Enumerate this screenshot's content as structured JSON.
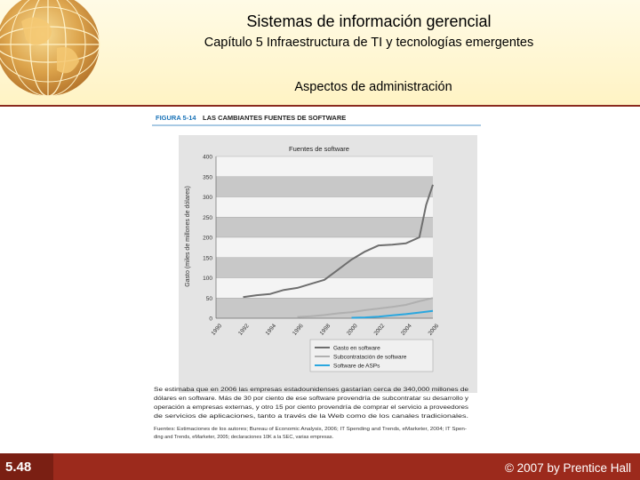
{
  "header": {
    "title": "Sistemas de información gerencial",
    "subtitle": "Capítulo 5 Infraestructura de TI y tecnologías emergentes",
    "topic": "Aspectos de administración"
  },
  "figure": {
    "label": "FIGURA 5-14",
    "label_title": "LAS CAMBIANTES FUENTES DE SOFTWARE",
    "caption_lines": [
      "Se estimaba que en 2006 las empresas estadounidenses gastarían cerca de 340,000 millones de",
      "dólares en software. Más de 30 por ciento de ese software provendría de subcontratar su desarrollo y",
      "operación a empresas externas, y otro 15 por ciento provendría de comprar el servicio a proveedores",
      "de servicios de aplicaciones, tanto a través de la Web como de los canales tradicionales."
    ],
    "source_lines": [
      "Fuentes: Estimaciones de los autores; Bureau of Economic Analysis, 2006; IT Spending and Trends, eMarketer, 2004; IT Spen-",
      "ding and Trends, eMarketer, 2005; declaraciones 10K a la SEC, varias empresas."
    ]
  },
  "chart_data": {
    "type": "line",
    "title": "Fuentes de software",
    "ylabel": "Gasto (miles de millones de dólares)",
    "xlabel": "",
    "ylim": [
      0,
      400
    ],
    "yticks": [
      0,
      50,
      100,
      150,
      200,
      250,
      300,
      350,
      400
    ],
    "xlim": [
      1990,
      2006
    ],
    "xticks": [
      1990,
      1992,
      1994,
      1996,
      1998,
      2000,
      2002,
      2004,
      2006
    ],
    "legend_position": "bottom-right",
    "series": [
      {
        "name": "Gasto en software",
        "color": "#6e6e6e",
        "x": [
          1992,
          1993,
          1994,
          1995,
          1996,
          1997,
          1998,
          1999,
          2000,
          2001,
          2002,
          2003,
          2004,
          2005,
          2005.5,
          2006
        ],
        "values": [
          52,
          57,
          60,
          70,
          75,
          85,
          95,
          120,
          145,
          165,
          180,
          182,
          185,
          200,
          280,
          330
        ]
      },
      {
        "name": "Subcontratación de software",
        "color": "#b0b0b0",
        "x": [
          1996,
          1997,
          1998,
          1999,
          2000,
          2001,
          2002,
          2003,
          2004,
          2005,
          2006
        ],
        "values": [
          3,
          5,
          8,
          12,
          15,
          20,
          24,
          28,
          33,
          42,
          50
        ]
      },
      {
        "name": "Software de ASPs",
        "color": "#2aa7df",
        "x": [
          2000,
          2001,
          2002,
          2003,
          2004,
          2005,
          2006
        ],
        "values": [
          1,
          2,
          4,
          7,
          10,
          14,
          18
        ]
      }
    ]
  },
  "footer": {
    "slide_number": "5.48",
    "copyright": "© 2007 by Prentice Hall"
  },
  "colors": {
    "header_bg": "#fff5cc",
    "footer_bg": "#9c2a1c",
    "figure_label": "#1a73b8"
  }
}
